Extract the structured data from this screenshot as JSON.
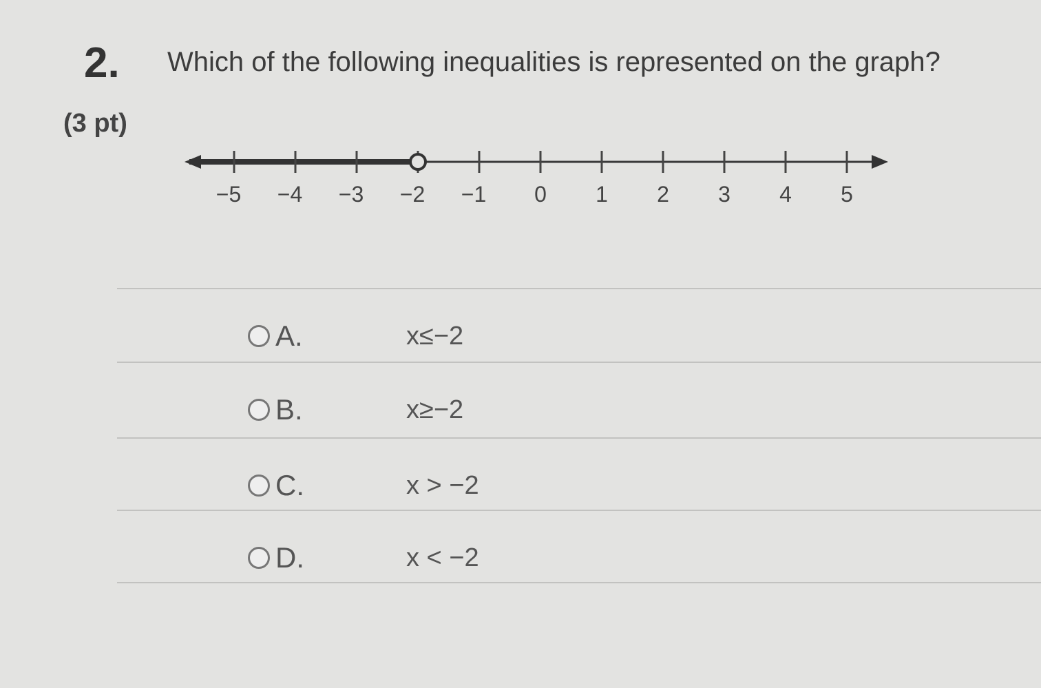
{
  "question": {
    "number": "2.",
    "text": "Which of the following inequalities is represented on the graph?",
    "points": "(3 pt)"
  },
  "chart_data": {
    "type": "number-line",
    "ticks": [
      -5,
      -4,
      -3,
      -2,
      -1,
      0,
      1,
      2,
      3,
      4,
      5
    ],
    "tick_labels": [
      "−5",
      "−4",
      "−3",
      "−2",
      "−1",
      "0",
      "1",
      "2",
      "3",
      "4",
      "5"
    ],
    "point": {
      "value": -2,
      "style": "open"
    },
    "shaded_direction": "left"
  },
  "options": [
    {
      "letter": "A.",
      "answer": "x≤−2"
    },
    {
      "letter": "B.",
      "answer": "x≥−2"
    },
    {
      "letter": "C.",
      "answer": "x > −2"
    },
    {
      "letter": "D.",
      "answer": "x < −2"
    }
  ]
}
